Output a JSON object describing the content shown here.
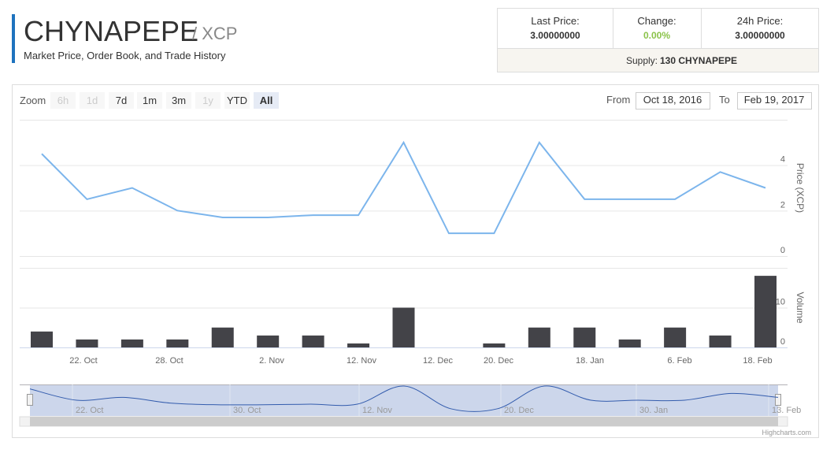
{
  "header": {
    "title": "CHYNAPEPE",
    "pair": "/ XCP",
    "subtitle": "Market Price, Order Book, and Trade History"
  },
  "stats": {
    "items": [
      {
        "label": "Last Price:",
        "value": "3.00000000"
      },
      {
        "label": "Change:",
        "value": "0.00%"
      },
      {
        "label": "24h Price:",
        "value": "3.00000000"
      }
    ],
    "supply_label": "Supply:",
    "supply_value": "130 CHYNAPEPE"
  },
  "range_selector": {
    "zoom_label": "Zoom",
    "buttons": [
      {
        "label": "6h",
        "disabled": true
      },
      {
        "label": "1d",
        "disabled": true
      },
      {
        "label": "7d"
      },
      {
        "label": "1m"
      },
      {
        "label": "3m"
      },
      {
        "label": "1y",
        "disabled": true
      },
      {
        "label": "YTD"
      },
      {
        "label": "All",
        "selected": true
      }
    ],
    "from_label": "From",
    "from": "Oct 18, 2016",
    "to_label": "To",
    "to": "Feb 19, 2017"
  },
  "chart": {
    "type": "stock",
    "price": {
      "axis_title": "Price (XCP)",
      "color": "#7cb5ec",
      "values": [
        4.5,
        2.5,
        3,
        2,
        1.7,
        1.7,
        1.8,
        1.8,
        5,
        1,
        1,
        5,
        2.5,
        2.5,
        2.5,
        3.7,
        3
      ],
      "ylim": [
        0,
        6
      ],
      "yticks": [
        0,
        2,
        4
      ]
    },
    "volume": {
      "axis_title": "Volume",
      "color": "#434348",
      "values": [
        4,
        2,
        2,
        2,
        5,
        3,
        3,
        1,
        10,
        0,
        1,
        5,
        5,
        2,
        5,
        3,
        18
      ],
      "ylim": [
        0,
        20
      ],
      "yticks": [
        0,
        10
      ]
    },
    "x_labels": [
      "22. Oct",
      "28. Oct",
      "2. Nov",
      "12. Nov",
      "12. Dec",
      "20. Dec",
      "18. Jan",
      "6. Feb",
      "18. Feb"
    ],
    "navigator_labels": [
      "22. Oct",
      "30. Oct",
      "12. Nov",
      "20. Dec",
      "30. Jan",
      "13. Feb"
    ],
    "credit": "Highcharts.com"
  }
}
